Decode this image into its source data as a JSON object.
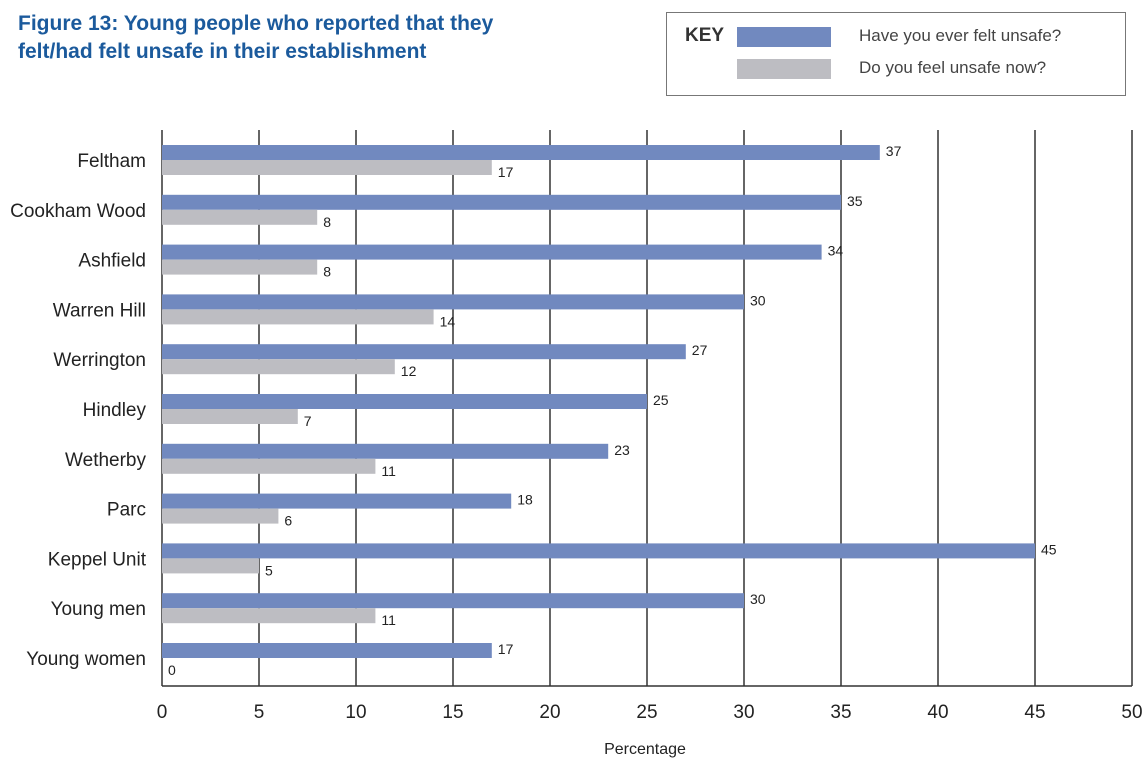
{
  "title_lines": [
    "Figure 13: Young people who reported that they",
    "felt/had felt unsafe in their establishment"
  ],
  "key": {
    "label": "KEY",
    "items": [
      {
        "text": "Have you ever felt unsafe?",
        "color": "#7189bf"
      },
      {
        "text": "Do you feel unsafe now?",
        "color": "#bdbdc2"
      }
    ]
  },
  "chart_data": {
    "type": "bar",
    "orientation": "horizontal",
    "title": "Figure 13: Young people who reported that they felt/had felt unsafe in their establishment",
    "xlabel": "Percentage",
    "ylabel": "",
    "xlim": [
      0,
      50
    ],
    "xticks": [
      0,
      5,
      10,
      15,
      20,
      25,
      30,
      35,
      40,
      45,
      50
    ],
    "grid": "vertical",
    "legend_position": "top-right",
    "categories": [
      "Feltham",
      "Cookham Wood",
      "Ashfield",
      "Warren Hill",
      "Werrington",
      "Hindley",
      "Wetherby",
      "Parc",
      "Keppel Unit",
      "Young men",
      "Young women"
    ],
    "series": [
      {
        "name": "Have you ever felt unsafe?",
        "color": "#7189bf",
        "values": [
          37,
          35,
          34,
          30,
          27,
          25,
          23,
          18,
          45,
          30,
          17
        ]
      },
      {
        "name": "Do you feel unsafe now?",
        "color": "#bdbdc2",
        "values": [
          17,
          8,
          8,
          14,
          12,
          7,
          11,
          6,
          5,
          11,
          0
        ]
      }
    ]
  }
}
